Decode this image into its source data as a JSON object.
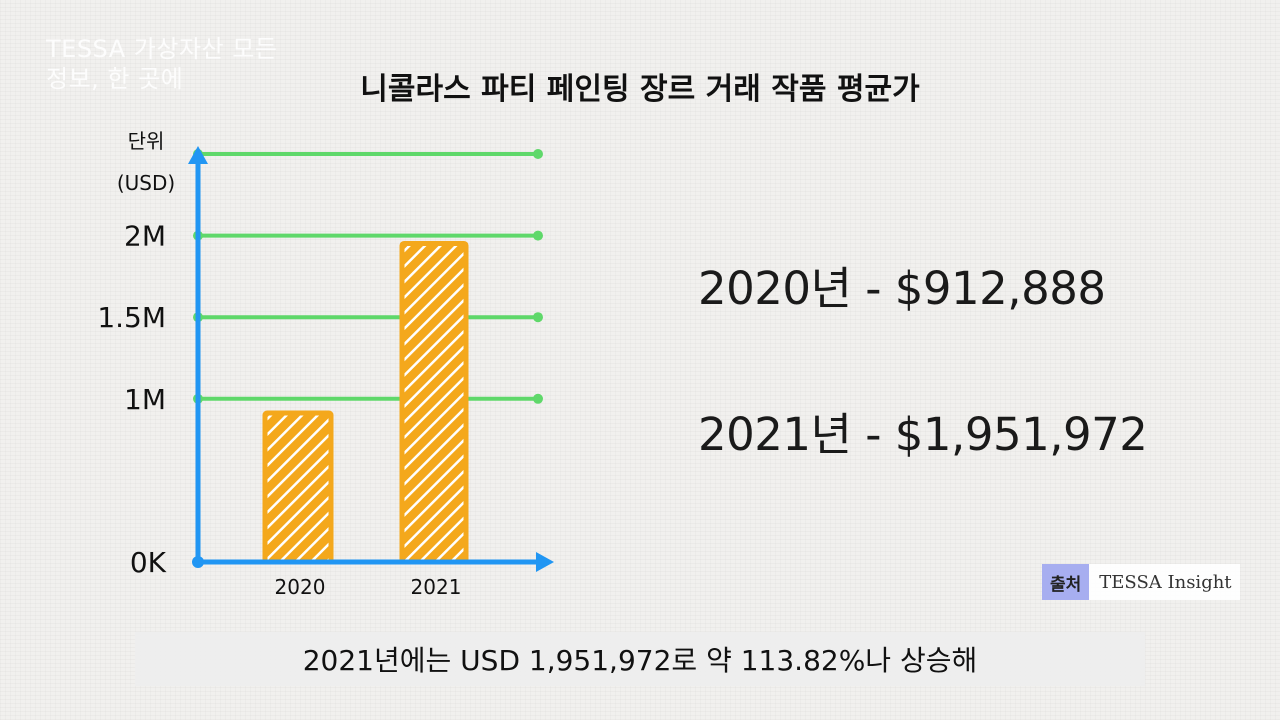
{
  "watermark": "TESSA 가상자산 모든 정보, 한 곳에",
  "title": "니콜라스 파티 페인팅 장르 거래 작품 평균가",
  "annotations": [
    "2020년 - $912,888",
    "2021년 - $1,951,972"
  ],
  "source": {
    "label": "출처",
    "name": "TESSA Insight"
  },
  "caption": "2021년에는 USD 1,951,972로 약 113.82%나 상승해",
  "colors": {
    "axis": "#2196f3",
    "grid": "#5fd86a",
    "bar_fill": "#f4a81c",
    "bar_hatch": "#ffffff"
  },
  "chart_data": {
    "type": "bar",
    "title": "니콜라스 파티 페인팅 장르 거래 작품 평균가",
    "ylabel_lines": [
      "단위",
      "(USD)"
    ],
    "categories": [
      "2020",
      "2021"
    ],
    "values": [
      912888,
      1951972
    ],
    "ylim": [
      0,
      2500000
    ],
    "yticks": [
      0,
      1000000,
      1500000,
      2000000
    ],
    "ytick_labels": [
      "0K",
      "1M",
      "1.5M",
      "2M"
    ],
    "grid": true
  }
}
